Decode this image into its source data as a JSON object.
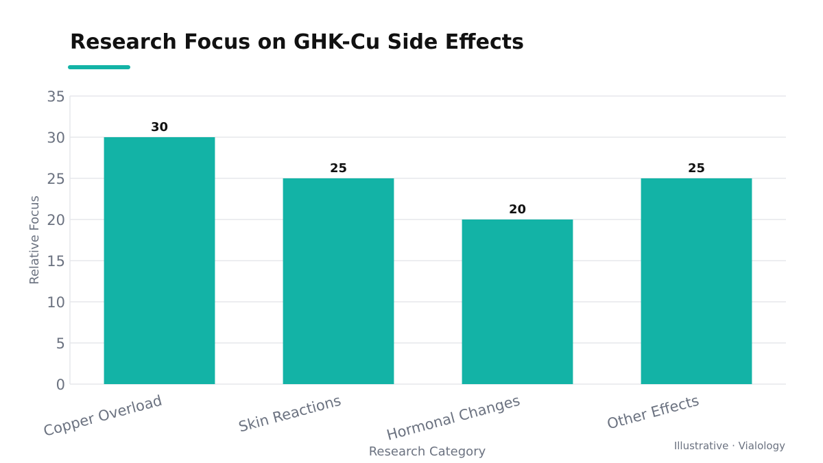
{
  "chart_data": {
    "type": "bar",
    "title": "Research Focus on GHK-Cu Side Effects",
    "xlabel": "Research Category",
    "ylabel": "Relative Focus",
    "categories": [
      "Copper Overload",
      "Skin Reactions",
      "Hormonal Changes",
      "Other Effects"
    ],
    "values": [
      30,
      25,
      20,
      25
    ],
    "data_labels": [
      "30",
      "25",
      "20",
      "25"
    ],
    "ylim": [
      0,
      35
    ],
    "yticks": [
      0,
      5,
      10,
      15,
      20,
      25,
      30,
      35
    ],
    "grid": true,
    "legend": "none"
  },
  "footnote": "Illustrative · Vialology",
  "colors": {
    "bar": "#13b3a6",
    "accent": "#13b3a6",
    "title": "#111111",
    "text_muted": "#6b7280",
    "grid": "#e5e7eb"
  }
}
